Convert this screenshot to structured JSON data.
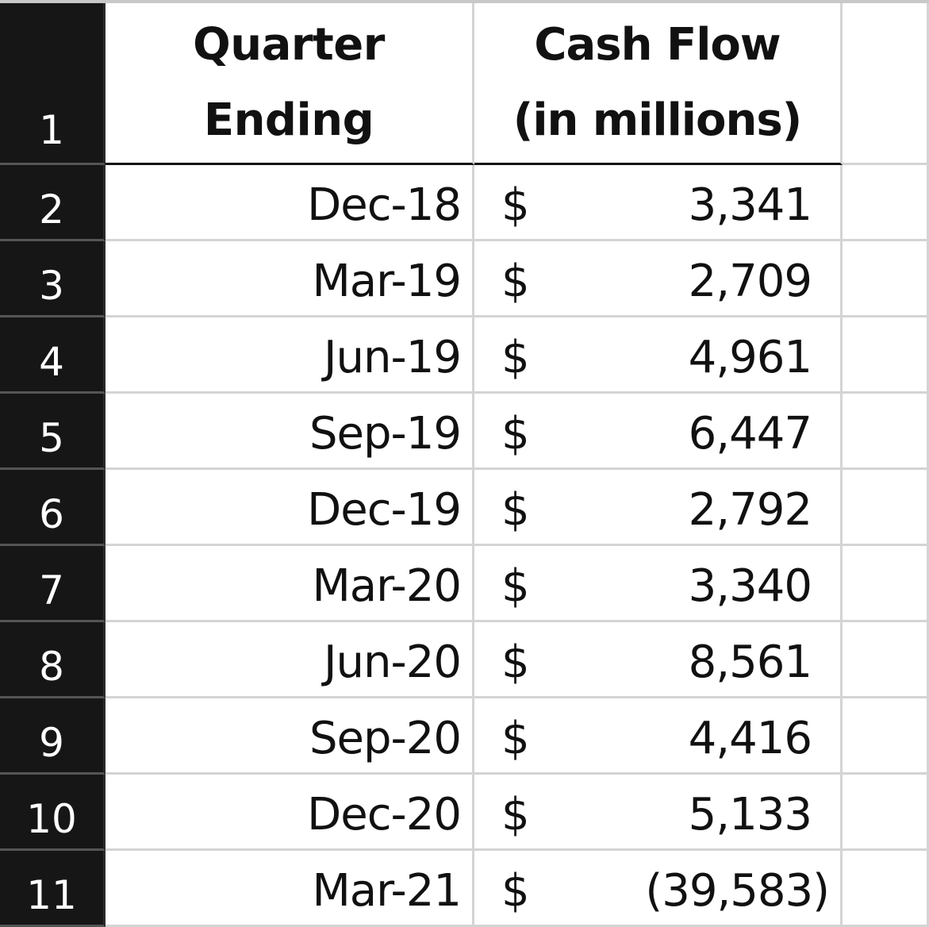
{
  "header": {
    "quarter_line1": "Quarter",
    "quarter_line2": "Ending",
    "cash_line1": "Cash Flow",
    "cash_line2": "(in millions)"
  },
  "row_numbers": [
    "1",
    "2",
    "3",
    "4",
    "5",
    "6",
    "7",
    "8",
    "9",
    "10",
    "11"
  ],
  "rows": [
    {
      "quarter": "Dec-18",
      "currency": "$",
      "amount": "3,341"
    },
    {
      "quarter": "Mar-19",
      "currency": "$",
      "amount": "2,709"
    },
    {
      "quarter": "Jun-19",
      "currency": "$",
      "amount": "4,961"
    },
    {
      "quarter": "Sep-19",
      "currency": "$",
      "amount": "6,447"
    },
    {
      "quarter": "Dec-19",
      "currency": "$",
      "amount": "2,792"
    },
    {
      "quarter": "Mar-20",
      "currency": "$",
      "amount": "3,340"
    },
    {
      "quarter": "Jun-20",
      "currency": "$",
      "amount": "8,561"
    },
    {
      "quarter": "Sep-20",
      "currency": "$",
      "amount": "4,416"
    },
    {
      "quarter": "Dec-20",
      "currency": "$",
      "amount": "5,133"
    },
    {
      "quarter": "Mar-21",
      "currency": "$",
      "amount": "(39,583)"
    }
  ]
}
